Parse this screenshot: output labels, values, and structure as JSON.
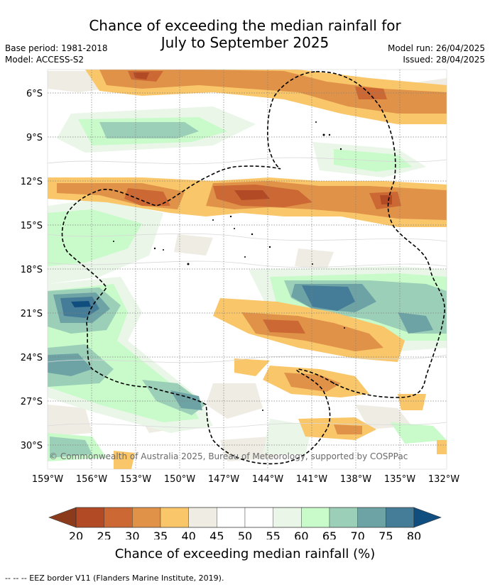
{
  "title_line1": "Chance of exceeding the median rainfall for",
  "title_line2": "July to September 2025",
  "base_period": "Base period: 1981-2018",
  "model": "Model: ACCESS-S2",
  "model_run": "Model run: 26/04/2025",
  "issued": "Issued: 28/04/2025",
  "copyright": "© Commonwealth of Australia 2025, Bureau of Meteorology, supported by COSPPac",
  "colorbar_title": "Chance of exceeding median rainfall (%)",
  "footnote": "--  --  -- EEZ border V11 (Flanders Marine Institute, 2019).",
  "lat_labels": [
    "6°S",
    "9°S",
    "12°S",
    "15°S",
    "18°S",
    "21°S",
    "24°S",
    "27°S",
    "30°S"
  ],
  "lon_labels": [
    "159°W",
    "156°W",
    "153°W",
    "150°W",
    "147°W",
    "144°W",
    "141°W",
    "138°W",
    "135°W",
    "132°W"
  ],
  "colorbar": {
    "ticks": [
      "20",
      "25",
      "30",
      "35",
      "40",
      "45",
      "50",
      "55",
      "60",
      "65",
      "70",
      "75",
      "80"
    ],
    "under_color": "#8c3a1c",
    "over_color": "#114e80",
    "colors": [
      "#b24a25",
      "#cc6833",
      "#e09348",
      "#fac66a",
      "#efece4",
      "#ffffff",
      "#ffffff",
      "#e9f6e8",
      "#c8fbc9",
      "#9ccfb8",
      "#6ea3a6",
      "#457c97"
    ]
  },
  "map": {
    "lon_range": [
      -159,
      -132
    ],
    "lat_range": [
      -31.5,
      -4.5
    ]
  }
}
